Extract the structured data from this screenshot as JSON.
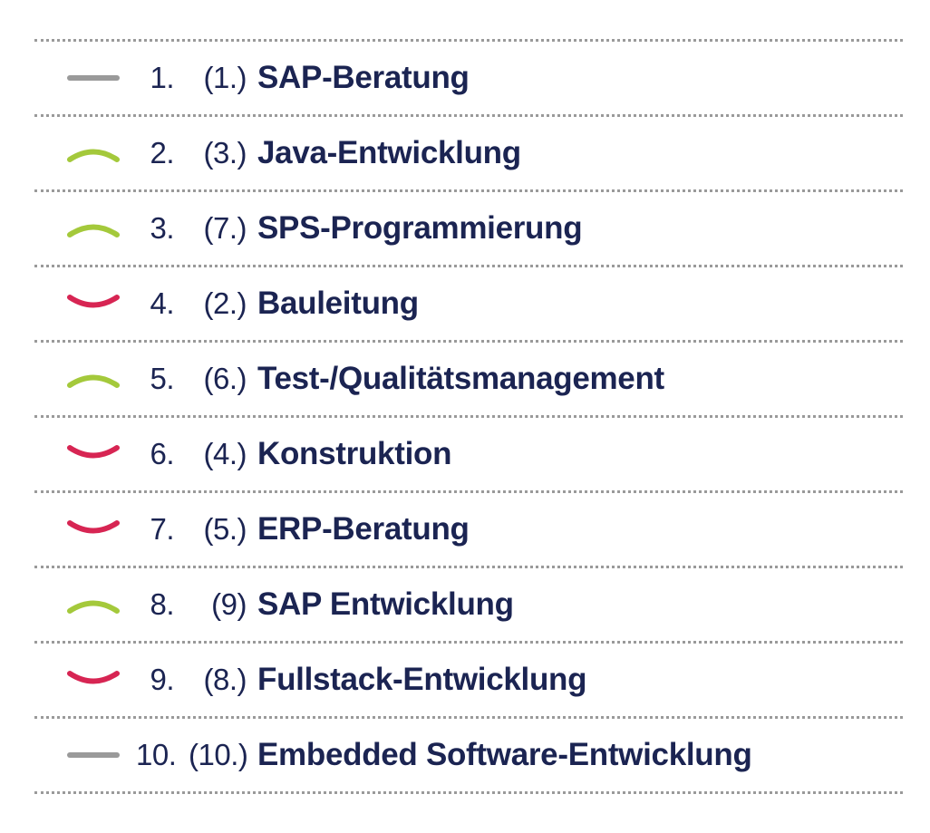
{
  "colors": {
    "up": "#a4c93b",
    "down": "#d72553",
    "same": "#9a9a9a",
    "text": "#1b2452"
  },
  "rows": [
    {
      "trend": "same",
      "rank": "1.",
      "previous": "(1.)",
      "job": "SAP-Beratung"
    },
    {
      "trend": "up",
      "rank": "2.",
      "previous": "(3.)",
      "job": "Java-Entwicklung"
    },
    {
      "trend": "up",
      "rank": "3.",
      "previous": "(7.)",
      "job": "SPS-Programmierung"
    },
    {
      "trend": "down",
      "rank": "4.",
      "previous": "(2.)",
      "job": "Bauleitung"
    },
    {
      "trend": "up",
      "rank": "5.",
      "previous": "(6.)",
      "job": "Test-/Qualitätsmanagement"
    },
    {
      "trend": "down",
      "rank": "6.",
      "previous": "(4.)",
      "job": "Konstruktion"
    },
    {
      "trend": "down",
      "rank": "7.",
      "previous": "(5.)",
      "job": "ERP-Beratung"
    },
    {
      "trend": "up",
      "rank": "8.",
      "previous": "(9)",
      "job": "SAP Entwicklung"
    },
    {
      "trend": "down",
      "rank": "9.",
      "previous": "(8.)",
      "job": "Fullstack-Entwicklung"
    },
    {
      "trend": "same",
      "rank": "10.",
      "previous": "(10.)",
      "job": "Embedded Software-Entwicklung"
    }
  ]
}
